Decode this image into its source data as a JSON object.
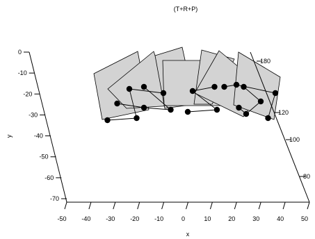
{
  "chart_data": {
    "type": "scatter",
    "title": "(T+R+P)",
    "xlabel": "x",
    "ylabel": "y",
    "zlabel": "",
    "x_ticks": [
      -50,
      -40,
      -30,
      -20,
      -10,
      0,
      10,
      20,
      30,
      40,
      50
    ],
    "y_ticks": [
      0,
      -10,
      -20,
      -30,
      -40,
      -50,
      -60,
      -70
    ],
    "z_ticks": [
      180,
      120,
      100,
      80
    ],
    "point_color": "#000000",
    "panel_fill": "#d3d3d3",
    "panel_stroke": "#000000",
    "series": [
      {
        "values": [
          {
            "x": -33,
            "y": -20
          },
          {
            "x": -21,
            "y": -19
          },
          {
            "x": -24,
            "y": -5
          },
          {
            "x": -10,
            "y": -7
          }
        ]
      },
      {
        "values": [
          {
            "x": -29,
            "y": -12
          },
          {
            "x": -18,
            "y": -14
          },
          {
            "x": -7,
            "y": -15
          },
          {
            "x": -18,
            "y": -4
          }
        ]
      },
      {
        "values": [
          {
            "x": 0,
            "y": -16
          },
          {
            "x": 12,
            "y": -15
          },
          {
            "x": 2,
            "y": -6
          },
          {
            "x": 11,
            "y": -4
          }
        ]
      },
      {
        "values": [
          {
            "x": 21,
            "y": -14
          },
          {
            "x": 24,
            "y": -17
          },
          {
            "x": 30,
            "y": -11
          },
          {
            "x": 23,
            "y": -4
          }
        ]
      },
      {
        "values": [
          {
            "x": 33,
            "y": -19
          },
          {
            "x": 36,
            "y": -7
          },
          {
            "x": 20,
            "y": -3
          },
          {
            "x": 15,
            "y": -4
          }
        ]
      }
    ]
  }
}
